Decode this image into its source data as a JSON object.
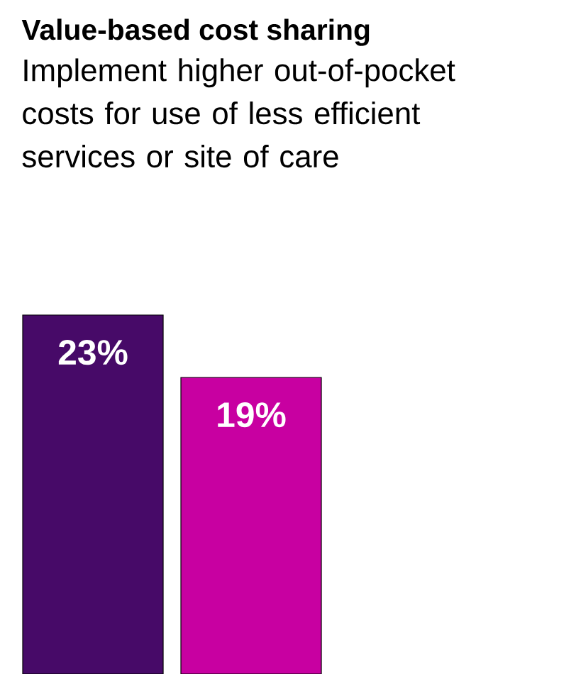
{
  "chart_data": {
    "type": "bar",
    "title": "Value-based cost sharing",
    "subtitle": "Implement higher out-of-pocket costs for use of less efficient services or site of care",
    "categories": [
      null,
      null
    ],
    "values": [
      23,
      19
    ],
    "colors": [
      "#470a68",
      "#c800a1"
    ],
    "value_labels": [
      "23%",
      "19%"
    ]
  }
}
